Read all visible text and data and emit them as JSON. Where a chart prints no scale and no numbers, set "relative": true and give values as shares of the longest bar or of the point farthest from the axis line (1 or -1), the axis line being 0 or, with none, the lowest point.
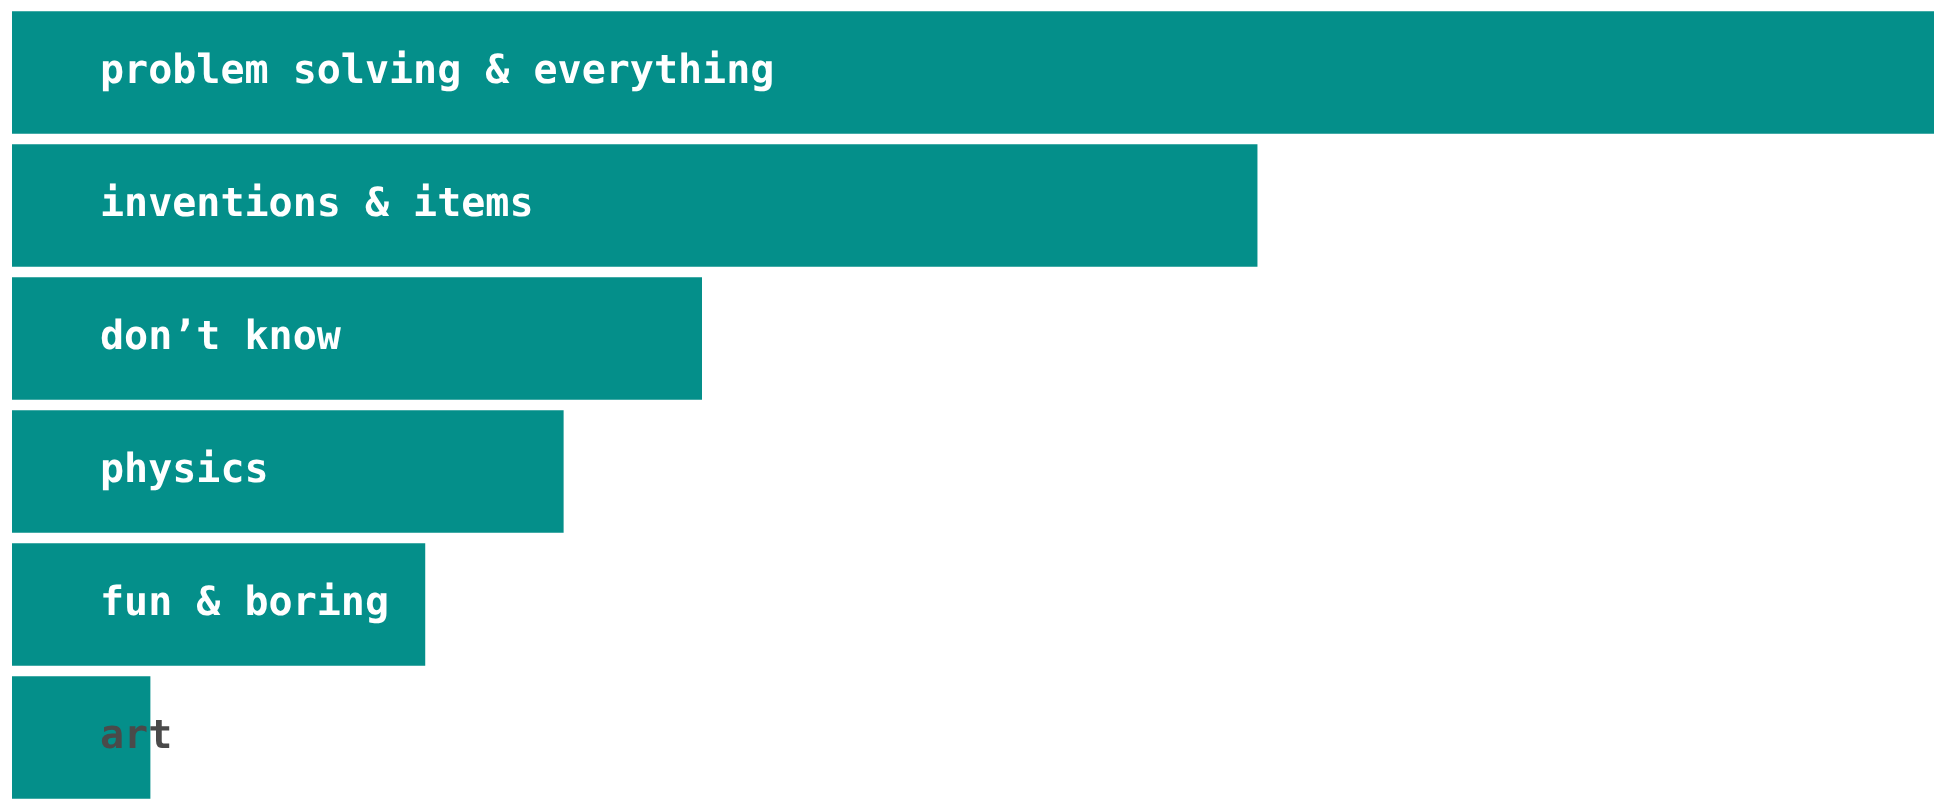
{
  "chart_data": {
    "type": "bar",
    "orientation": "horizontal",
    "relative": true,
    "categories": [
      "problem solving & everything",
      "inventions & items",
      "don’t know",
      "physics",
      "fun & boring",
      "art"
    ],
    "values": [
      1,
      0.648,
      0.359,
      0.287,
      0.215,
      0.072
    ],
    "color": "#048f8a"
  }
}
